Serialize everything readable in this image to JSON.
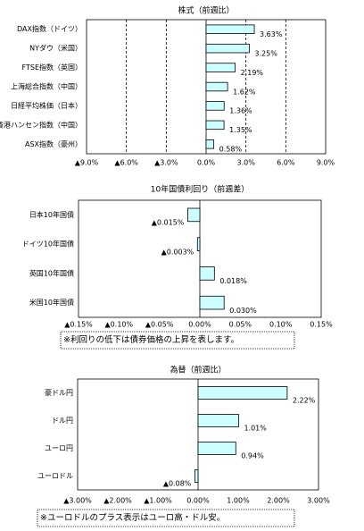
{
  "chart_data": [
    {
      "type": "bar",
      "orientation": "horizontal",
      "title": "株式（前週比）",
      "categories": [
        "DAX指数（ドイツ）",
        "NYダウ（米国）",
        "FTSE指数（英国）",
        "上海総合指数（中国）",
        "日経平均株価（日本）",
        "香港ハンセン指数（中国）",
        "ASX指数（豪州）"
      ],
      "values": [
        3.63,
        3.25,
        2.19,
        1.62,
        1.36,
        1.35,
        0.58
      ],
      "value_labels": [
        "3.63%",
        "3.25%",
        "2.19%",
        "1.62%",
        "1.36%",
        "1.35%",
        "0.58%"
      ],
      "color": "#ccffff",
      "negative_color": "#ff0000",
      "grid": true,
      "xlim": [
        -9,
        9
      ],
      "xticks": [
        {
          "value": -9,
          "label": "▲9.0%"
        },
        {
          "value": -6,
          "label": "▲6.0%"
        },
        {
          "value": -3,
          "label": "▲3.0%"
        },
        {
          "value": 0,
          "label": "0.0%"
        },
        {
          "value": 3,
          "label": "3.0%"
        },
        {
          "value": 6,
          "label": "6.0%"
        },
        {
          "value": 9,
          "label": "9.0%"
        }
      ]
    },
    {
      "type": "bar",
      "orientation": "horizontal",
      "title": "10年国債利回り（前週差）",
      "categories": [
        "日本10年国債",
        "ドイツ10年国債",
        "英国10年国債",
        "米国10年国債"
      ],
      "values": [
        -0.015,
        -0.003,
        0.018,
        0.03
      ],
      "value_labels": [
        "▲0.015%",
        "▲0.003%",
        "0.018%",
        "0.030%"
      ],
      "color": "#ccffff",
      "negative_color": "#ff0000",
      "grid": false,
      "xlim": [
        -0.15,
        0.15
      ],
      "xticks": [
        {
          "value": -0.15,
          "label": "▲0.15%"
        },
        {
          "value": -0.1,
          "label": "▲0.10%"
        },
        {
          "value": -0.05,
          "label": "▲0.05%"
        },
        {
          "value": 0,
          "label": "0.00%"
        },
        {
          "value": 0.05,
          "label": "0.05%"
        },
        {
          "value": 0.1,
          "label": "0.10%"
        },
        {
          "value": 0.15,
          "label": "0.15%"
        }
      ],
      "note": "※利回りの低下は債券価格の上昇を表します。"
    },
    {
      "type": "bar",
      "orientation": "horizontal",
      "title": "為替（前週比）",
      "categories": [
        "豪ドル円",
        "ドル円",
        "ユーロ円",
        "ユーロドル"
      ],
      "values": [
        2.22,
        1.01,
        0.94,
        -0.08
      ],
      "value_labels": [
        "2.22%",
        "1.01%",
        "0.94%",
        "▲0.08%"
      ],
      "color": "#ccffff",
      "negative_color": "#ff0000",
      "grid": false,
      "xlim": [
        -3,
        3
      ],
      "xticks": [
        {
          "value": -3,
          "label": "▲3.00%"
        },
        {
          "value": -2,
          "label": "▲2.00%"
        },
        {
          "value": -1,
          "label": "▲1.00%"
        },
        {
          "value": 0,
          "label": "0.00%"
        },
        {
          "value": 1,
          "label": "1.00%"
        },
        {
          "value": 2,
          "label": "2.00%"
        },
        {
          "value": 3,
          "label": "3.00%"
        }
      ],
      "note": "※ユーロドルのプラス表示はユーロ高・ドル安。"
    }
  ]
}
